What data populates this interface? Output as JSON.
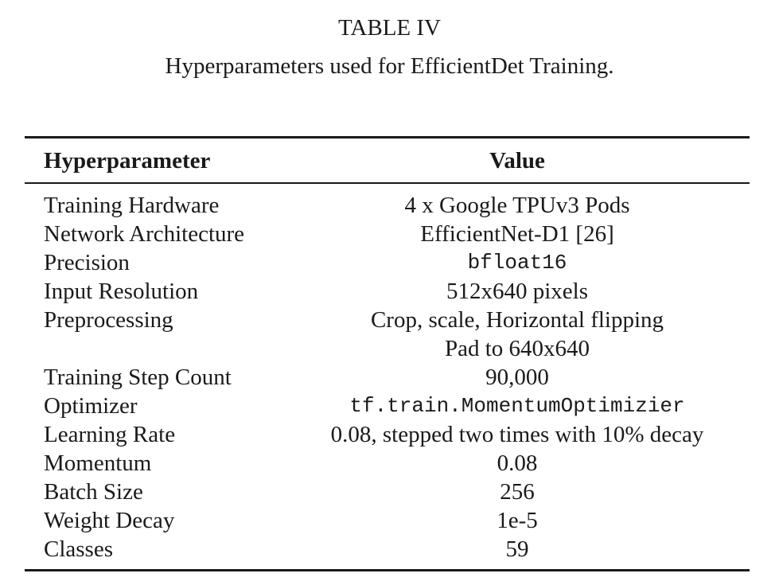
{
  "table": {
    "label": "TABLE IV",
    "caption": "Hyperparameters used for EfficientDet Training.",
    "columns": {
      "param": "Hyperparameter",
      "value": "Value"
    },
    "rows": [
      {
        "param": "Training Hardware",
        "value": "4 x Google TPUv3 Pods"
      },
      {
        "param": "Network Architecture",
        "value": "EfficientNet-D1 [26]"
      },
      {
        "param": "Precision",
        "value": "bfloat16"
      },
      {
        "param": "Input Resolution",
        "value": "512x640 pixels"
      },
      {
        "param": "Preprocessing",
        "value": "Crop, scale, Horizontal flipping"
      },
      {
        "param": "",
        "value": "Pad to 640x640"
      },
      {
        "param": "Training Step Count",
        "value": "90,000"
      },
      {
        "param": "Optimizer",
        "value": "tf.train.MomentumOptimizier"
      },
      {
        "param": "Learning Rate",
        "value": "0.08, stepped two times with 10% decay"
      },
      {
        "param": "Momentum",
        "value": "0.08"
      },
      {
        "param": "Batch Size",
        "value": "256"
      },
      {
        "param": "Weight Decay",
        "value": "1e-5"
      },
      {
        "param": "Classes",
        "value": "59"
      }
    ]
  }
}
